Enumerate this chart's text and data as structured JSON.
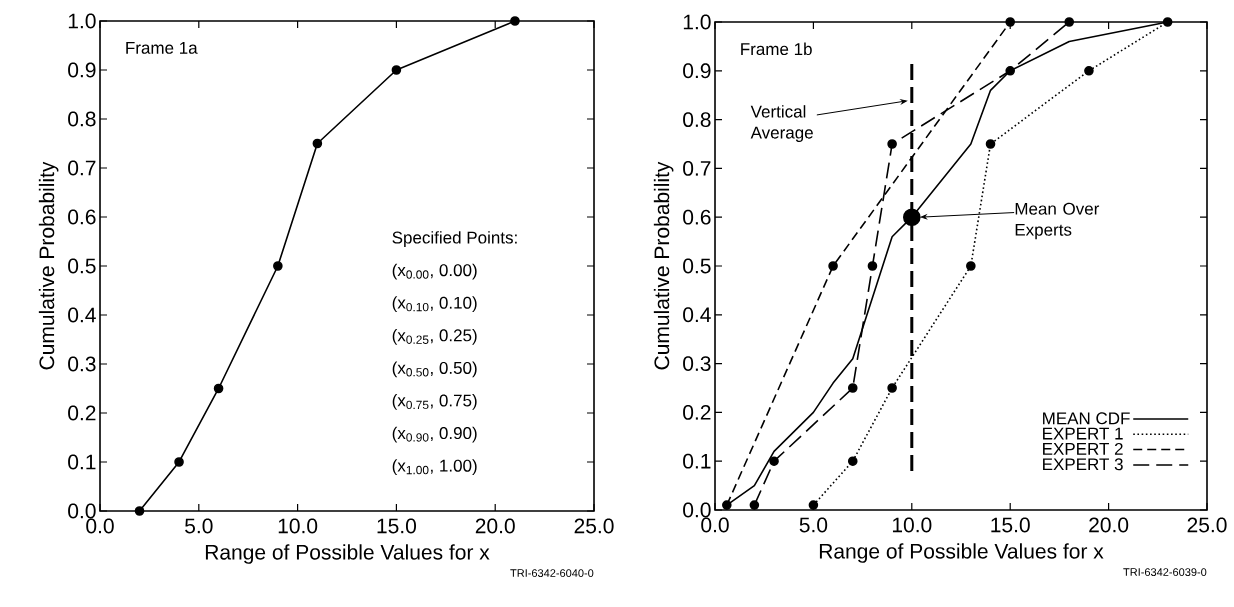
{
  "chart_data": [
    {
      "type": "line",
      "xlabel": "Range of Possible Values for x",
      "ylabel": "Cumulative Probability",
      "x": [
        2,
        4,
        6,
        9,
        11,
        15,
        21
      ],
      "values": [
        0,
        0.1,
        0.25,
        0.5,
        0.75,
        0.9,
        1.0
      ],
      "color": "#000000",
      "marker": "circle",
      "line_style": "solid",
      "xlim": [
        0,
        25
      ],
      "ylim": [
        0,
        1
      ],
      "xticks": [
        {
          "value": 0,
          "label": "0.0"
        },
        {
          "value": 5,
          "label": "5.0"
        },
        {
          "value": 10,
          "label": "10.0"
        },
        {
          "value": 15,
          "label": "15.0"
        },
        {
          "value": 20,
          "label": "20.0"
        },
        {
          "value": 25,
          "label": "25.0"
        }
      ],
      "yticks": [
        {
          "value": 0,
          "label": "0.0"
        },
        {
          "value": 0.1,
          "label": "0.1"
        },
        {
          "value": 0.2,
          "label": "0.2"
        },
        {
          "value": 0.3,
          "label": "0.3"
        },
        {
          "value": 0.4,
          "label": "0.4"
        },
        {
          "value": 0.5,
          "label": "0.5"
        },
        {
          "value": 0.6,
          "label": "0.6"
        },
        {
          "value": 0.7,
          "label": "0.7"
        },
        {
          "value": 0.8,
          "label": "0.8"
        },
        {
          "value": 0.9,
          "label": "0.9"
        },
        {
          "value": 1,
          "label": "1.0"
        }
      ],
      "annotations": [
        "Frame 1a",
        "Specified Points:",
        "(x$_{0.00}$, 0.00)",
        "(x$_{0.10}$, 0.10)",
        "(x$_{0.25}$, 0.25)",
        "(x$_{0.50}$, 0.50)",
        "(x$_{0.75}$, 0.75)",
        "(x$_{0.90}$, 0.90)",
        "(x$_{1.00}$, 1.00)",
        "TRI-6342-6040-0"
      ]
    },
    {
      "type": "line",
      "xlabel": "Range of Possible Values for x",
      "ylabel": "Cumulative Probability",
      "series": [
        {
          "name": "MEAN CDF",
          "color": "#000000",
          "line_style": "solid",
          "marker": "none",
          "x": [
            0.6,
            2,
            3,
            5,
            6,
            7,
            9,
            10,
            13,
            14,
            15,
            18,
            23
          ],
          "values": [
            0.01,
            0.05,
            0.12,
            0.2,
            0.26,
            0.31,
            0.56,
            0.6,
            0.75,
            0.86,
            0.9,
            0.96,
            1.0
          ]
        },
        {
          "name": "EXPERT 1",
          "color": "#000000",
          "line_style": "dotted",
          "marker": "circle",
          "x": [
            5,
            7,
            9,
            13,
            14,
            19,
            23
          ],
          "values": [
            0.01,
            0.1,
            0.25,
            0.5,
            0.75,
            0.9,
            1.0
          ]
        },
        {
          "name": "EXPERT 2",
          "color": "#000000",
          "line_style": "dashed",
          "marker": "circle",
          "x": [
            0.6,
            6,
            15
          ],
          "values": [
            0.01,
            0.5,
            1.0
          ]
        },
        {
          "name": "EXPERT 3",
          "color": "#000000",
          "line_style": "dashed",
          "marker": "circle",
          "x": [
            2,
            3,
            7,
            8,
            9,
            15,
            18
          ],
          "values": [
            0.01,
            0.1,
            0.25,
            0.5,
            0.75,
            0.9,
            1.0
          ]
        },
        {
          "type": "scatter",
          "color": "#000000",
          "marker": "circle",
          "x": [
            10
          ],
          "values": [
            0.6
          ]
        }
      ],
      "legend": "bottom right",
      "ref_lines": [
        {
          "axis": "x",
          "value": 10,
          "label": "Vertical Average",
          "line_style": "dashed",
          "color": "#000000"
        }
      ],
      "xlim": [
        0,
        25
      ],
      "ylim": [
        0,
        1
      ],
      "xticks": [
        {
          "value": 0,
          "label": "0.0"
        },
        {
          "value": 5,
          "label": "5.0"
        },
        {
          "value": 10,
          "label": "10.0"
        },
        {
          "value": 15,
          "label": "15.0"
        },
        {
          "value": 20,
          "label": "20.0"
        },
        {
          "value": 25,
          "label": "25.0"
        }
      ],
      "yticks": [
        {
          "value": 0,
          "label": "0.0"
        },
        {
          "value": 0.1,
          "label": "0.1"
        },
        {
          "value": 0.2,
          "label": "0.2"
        },
        {
          "value": 0.3,
          "label": "0.3"
        },
        {
          "value": 0.4,
          "label": "0.4"
        },
        {
          "value": 0.5,
          "label": "0.5"
        },
        {
          "value": 0.6,
          "label": "0.6"
        },
        {
          "value": 0.7,
          "label": "0.7"
        },
        {
          "value": 0.8,
          "label": "0.8"
        },
        {
          "value": 0.9,
          "label": "0.9"
        },
        {
          "value": 1,
          "label": "1.0"
        }
      ],
      "annotations": [
        "Frame 1b",
        {
          "text": "Mean Over Experts",
          "x": 10.4,
          "y": 0.6
        },
        "TRI-6342-6039-0"
      ]
    }
  ]
}
